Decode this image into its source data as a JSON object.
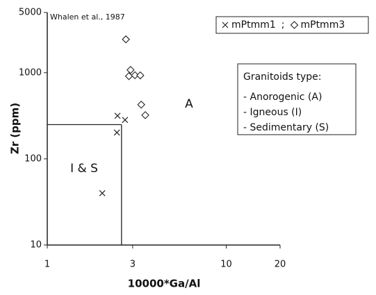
{
  "chart_data": {
    "type": "scatter",
    "source": "Whalen et al., 1987",
    "x_label": "10000*Ga/Al",
    "y_label": "Zr (ppm)",
    "xlim": [
      1,
      20
    ],
    "ylim": [
      10,
      5000
    ],
    "log_x": true,
    "log_y": true,
    "xticks": [
      1,
      3,
      10,
      20
    ],
    "yticks": [
      10,
      100,
      1000,
      5000
    ],
    "legend_separator": ";",
    "series": [
      {
        "name": "mPtmm1",
        "marker": "x",
        "color": "#222222",
        "x": [
          2.03,
          2.45,
          2.47,
          2.72
        ],
        "values": [
          40,
          202,
          316,
          283
        ]
      },
      {
        "name": "mPtmm3",
        "marker": "diamond",
        "color": "#222222",
        "x": [
          2.75,
          2.92,
          2.86,
          3.09,
          3.31,
          3.35,
          3.53
        ],
        "values": [
          2440,
          1077,
          911,
          935,
          930,
          426,
          322
        ]
      }
    ],
    "boundary": {
      "x": 2.6,
      "y": 250
    },
    "region_labels": [
      "A",
      "I & S"
    ],
    "info_box": {
      "title": "Granitoids type:",
      "items": [
        "- Anorogenic (A)",
        "- Igneous (I)",
        "- Sedimentary (S)"
      ]
    }
  }
}
